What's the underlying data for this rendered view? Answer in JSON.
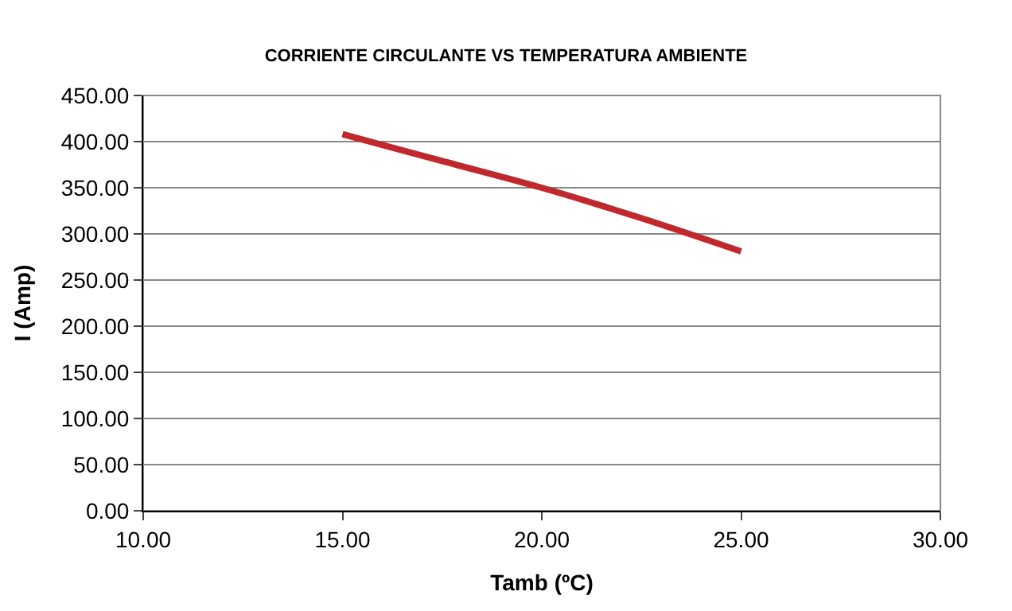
{
  "chart_data": {
    "type": "line",
    "title": "CORRIENTE CIRCULANTE VS TEMPERATURA AMBIENTE",
    "xlabel": "Tamb (ºC)",
    "ylabel": "I (Amp)",
    "x": [
      15,
      17.5,
      20,
      22.5,
      25
    ],
    "series": [
      {
        "color": "#c0282d",
        "values": [
          408,
          379,
          350,
          317,
          281
        ]
      }
    ],
    "xlim": [
      10,
      30
    ],
    "xticks": [
      {
        "value": 10,
        "label": "10.00"
      },
      {
        "value": 15,
        "label": "15.00"
      },
      {
        "value": 20,
        "label": "20.00"
      },
      {
        "value": 25,
        "label": "25.00"
      },
      {
        "value": 30,
        "label": "30.00"
      }
    ],
    "ylim": [
      0,
      450
    ],
    "yticks": [
      {
        "value": 0,
        "label": "0.00"
      },
      {
        "value": 50,
        "label": "50.00"
      },
      {
        "value": 100,
        "label": "100.00"
      },
      {
        "value": 150,
        "label": "150.00"
      },
      {
        "value": 200,
        "label": "200.00"
      },
      {
        "value": 250,
        "label": "250.00"
      },
      {
        "value": 300,
        "label": "300.00"
      },
      {
        "value": 350,
        "label": "350.00"
      },
      {
        "value": 400,
        "label": "400.00"
      },
      {
        "value": 450,
        "label": "450.00"
      }
    ],
    "grid": "y",
    "marker": "none",
    "line_style": "solid"
  }
}
